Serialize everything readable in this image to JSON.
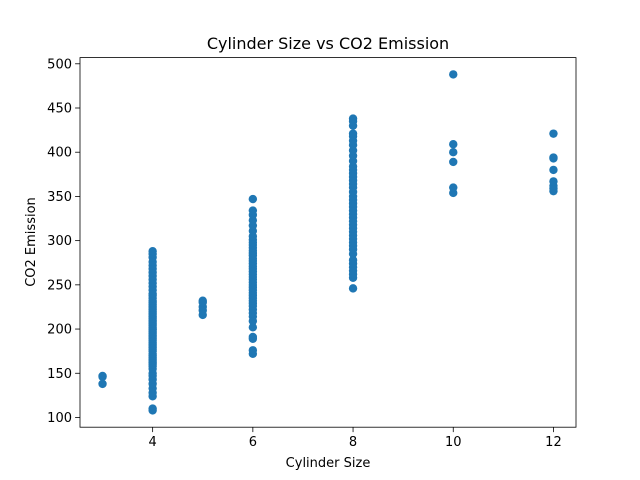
{
  "chart_data": {
    "type": "scatter",
    "title": "Cylinder Size vs CO2 Emission",
    "x_label": "Cylinder Size",
    "y_label": "CO2 Emission",
    "color": "#1f77b4",
    "xlim": [
      2.55,
      12.45
    ],
    "ylim": [
      89,
      507
    ],
    "xticks": [
      4,
      6,
      8,
      10,
      12
    ],
    "yticks": [
      100,
      150,
      200,
      250,
      300,
      350,
      400,
      450,
      500
    ],
    "x": [
      3,
      3,
      3,
      4,
      4,
      4,
      4,
      4,
      4,
      4,
      4,
      4,
      4,
      4,
      4,
      4,
      4,
      4,
      4,
      4,
      4,
      4,
      4,
      4,
      4,
      4,
      4,
      4,
      4,
      4,
      4,
      4,
      4,
      4,
      4,
      4,
      4,
      4,
      4,
      4,
      4,
      4,
      4,
      4,
      4,
      4,
      4,
      4,
      4,
      4,
      4,
      4,
      4,
      4,
      4,
      4,
      4,
      4,
      4,
      4,
      4,
      4,
      4,
      4,
      4,
      4,
      5,
      5,
      5,
      5,
      5,
      6,
      6,
      6,
      6,
      6,
      6,
      6,
      6,
      6,
      6,
      6,
      6,
      6,
      6,
      6,
      6,
      6,
      6,
      6,
      6,
      6,
      6,
      6,
      6,
      6,
      6,
      6,
      6,
      6,
      6,
      6,
      6,
      6,
      6,
      6,
      6,
      6,
      6,
      6,
      6,
      6,
      6,
      8,
      8,
      8,
      8,
      8,
      8,
      8,
      8,
      8,
      8,
      8,
      8,
      8,
      8,
      8,
      8,
      8,
      8,
      8,
      8,
      8,
      8,
      8,
      8,
      8,
      8,
      8,
      8,
      8,
      8,
      8,
      8,
      8,
      8,
      8,
      8,
      8,
      8,
      8,
      8,
      8,
      8,
      10,
      10,
      10,
      10,
      10,
      10,
      12,
      12,
      12,
      12,
      12,
      12,
      12,
      12
    ],
    "values": [
      138,
      147,
      146,
      108,
      110,
      124,
      128,
      133,
      138,
      143,
      147,
      150,
      155,
      158,
      160,
      162,
      164,
      166,
      168,
      170,
      172,
      175,
      177,
      179,
      181,
      183,
      185,
      187,
      189,
      191,
      193,
      195,
      197,
      199,
      200,
      202,
      204,
      206,
      208,
      210,
      212,
      214,
      216,
      218,
      220,
      222,
      224,
      226,
      228,
      230,
      232,
      235,
      238,
      240,
      244,
      248,
      252,
      256,
      260,
      264,
      268,
      272,
      276,
      281,
      285,
      288,
      216,
      221,
      225,
      232,
      230,
      172,
      176,
      189,
      191,
      202,
      209,
      214,
      218,
      222,
      226,
      229,
      232,
      235,
      238,
      241,
      244,
      247,
      250,
      253,
      256,
      259,
      262,
      265,
      268,
      271,
      274,
      277,
      280,
      283,
      286,
      289,
      292,
      295,
      298,
      301,
      305,
      311,
      317,
      323,
      329,
      334,
      347,
      246,
      258,
      262,
      266,
      270,
      274,
      278,
      285,
      290,
      294,
      298,
      302,
      306,
      310,
      314,
      318,
      322,
      326,
      330,
      334,
      338,
      342,
      346,
      350,
      355,
      360,
      364,
      368,
      372,
      376,
      380,
      384,
      390,
      396,
      402,
      408,
      413,
      418,
      421,
      430,
      435,
      438,
      354,
      360,
      389,
      400,
      409,
      488,
      356,
      359,
      362,
      367,
      380,
      393,
      394,
      421
    ]
  }
}
